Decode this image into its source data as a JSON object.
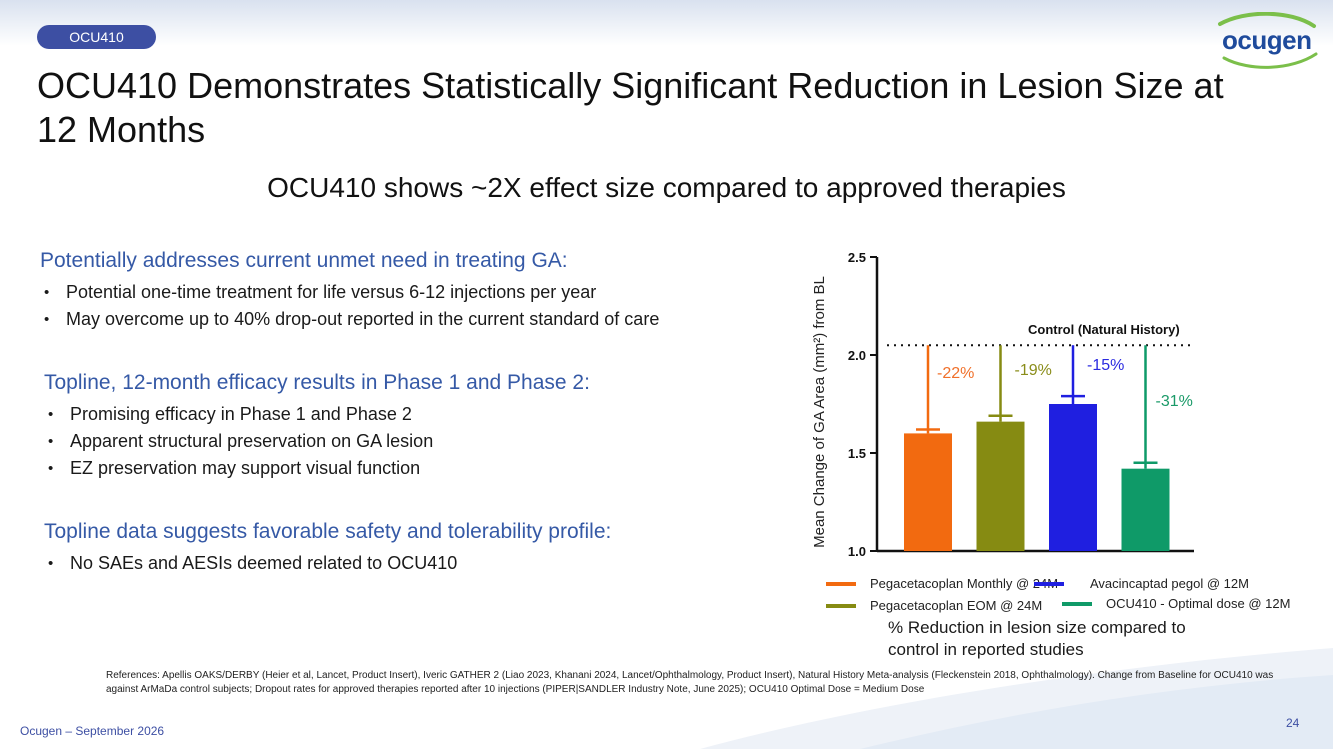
{
  "header": {
    "tag": "OCU410",
    "logo_text": "ocugen",
    "title": "OCU410 Demonstrates Statistically Significant Reduction in Lesion Size at 12 Months",
    "subtitle": "OCU410 shows ~2X effect size compared to approved therapies"
  },
  "sections": [
    {
      "heading": "Potentially addresses current unmet need in treating GA:",
      "bullets": [
        "Potential one-time treatment for life versus 6-12 injections per year",
        "May overcome up to 40% drop-out reported in the current standard of care"
      ]
    },
    {
      "heading": "Topline, 12-month efficacy results in Phase 1 and Phase 2:",
      "bullets": [
        "Promising efficacy in Phase 1 and Phase 2",
        "Apparent structural preservation on GA lesion",
        "EZ preservation may support visual function"
      ]
    },
    {
      "heading": "Topline data suggests favorable safety and tolerability profile:",
      "bullets": [
        "No SAEs and AESIs deemed related to OCU410"
      ]
    }
  ],
  "chart_data": {
    "type": "bar",
    "ylabel": "Mean Change of GA Area (mm²) from BL",
    "ylim": [
      1.0,
      2.5
    ],
    "yticks": [
      "1.0",
      "1.5",
      "2.0",
      "2.5"
    ],
    "reference_line": {
      "label": "Control (Natural History)",
      "value": 2.05
    },
    "series": [
      {
        "name": "Pegacetaplan Monthly @ 24M",
        "value": 1.6,
        "error_top": 1.62,
        "reduction_label": "-22%",
        "color": "#f26a10",
        "label_color": "#f0702a"
      },
      {
        "name": "Pegacetacoplan EOM @ 24M",
        "value": 1.66,
        "error_top": 1.69,
        "reduction_label": "-19%",
        "color": "#868b12",
        "label_color": "#8a8d1a"
      },
      {
        "name": "Avacincaptad pegol @ 12M",
        "value": 1.75,
        "error_top": 1.79,
        "reduction_label": "-15%",
        "color": "#1f1fe0",
        "label_color": "#2a2ae0"
      },
      {
        "name": "OCU410 - Optimal dose @ 12M",
        "value": 1.42,
        "error_top": 1.45,
        "reduction_label": "-31%",
        "color": "#0f9a68",
        "label_color": "#1a9a68"
      }
    ],
    "legend": [
      {
        "label": "Pegacetacoplan Monthly @ 24M",
        "color": "#f26a10"
      },
      {
        "label": "Pegacetacoplan EOM @ 24M",
        "color": "#868b12"
      },
      {
        "label": "Avacincaptad pegol @ 12M",
        "color": "#1f1fe0"
      },
      {
        "label": "OCU410 - Optimal dose @ 12M",
        "color": "#0f9a68"
      }
    ],
    "caption": "% Reduction in lesion size compared to control in reported studies"
  },
  "references": "References: Apellis OAKS/DERBY (Heier et al, Lancet, Product Insert), Iveric GATHER 2 (Liao 2023, Khanani 2024, Lancet/Ophthalmology, Product Insert), Natural History Meta-analysis (Fleckenstein 2018, Ophthalmology). Change from Baseline for OCU410 was against ArMaDa control subjects; Dropout rates for approved therapies reported after 10 injections (PIPER|SANDLER Industry Note, June 2025); OCU410 Optimal Dose = Medium Dose",
  "footer": {
    "left": "Ocugen – September 2026",
    "page": "24"
  },
  "colors": {
    "accent": "#3d4fa3",
    "heading": "#3559a6",
    "logo": "#1f4b9c"
  }
}
